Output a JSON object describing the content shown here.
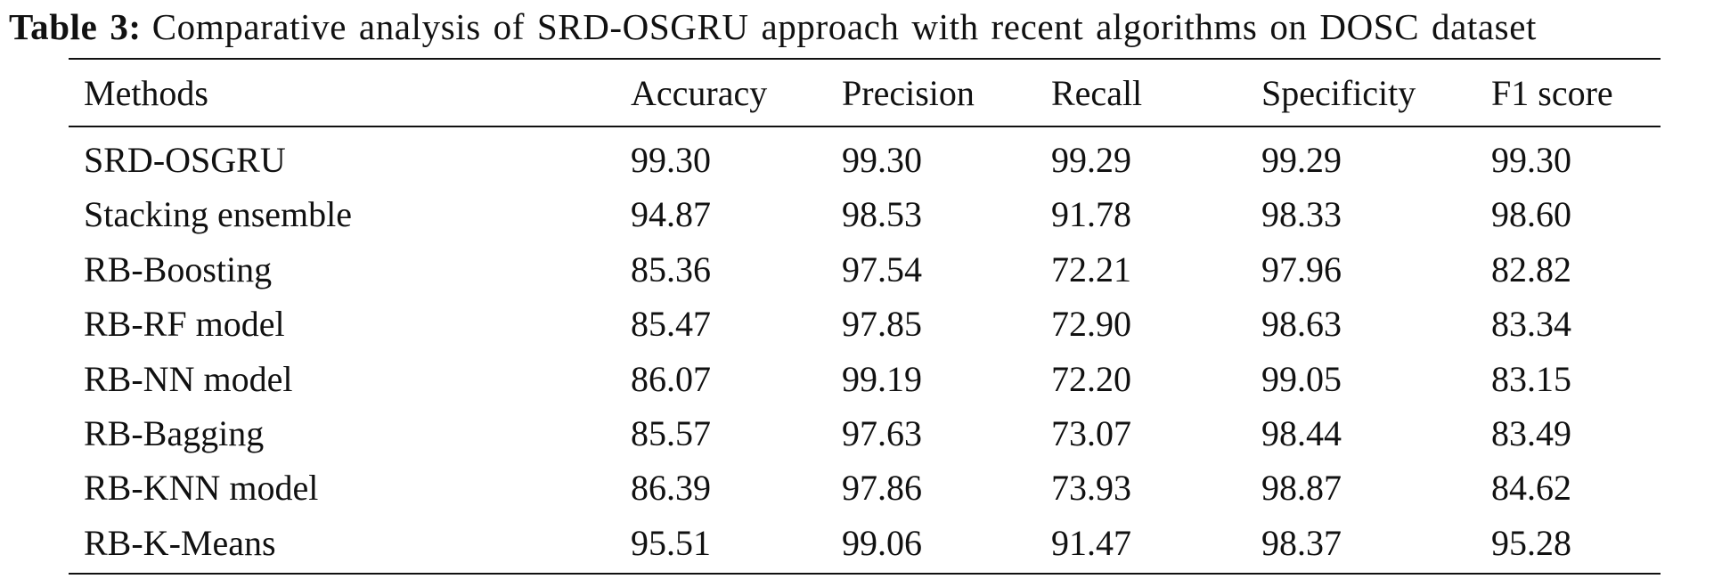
{
  "caption": {
    "label": "Table 3:",
    "text": "Comparative analysis of SRD-OSGRU approach with recent algorithms on DOSC dataset"
  },
  "table": {
    "columns": [
      "Methods",
      "Accuracy",
      "Precision",
      "Recall",
      "Specificity",
      "F1 score"
    ],
    "rows": [
      [
        "SRD-OSGRU",
        "99.30",
        "99.30",
        "99.29",
        "99.29",
        "99.30"
      ],
      [
        "Stacking ensemble",
        "94.87",
        "98.53",
        "91.78",
        "98.33",
        "98.60"
      ],
      [
        "RB-Boosting",
        "85.36",
        "97.54",
        "72.21",
        "97.96",
        "82.82"
      ],
      [
        "RB-RF model",
        "85.47",
        "97.85",
        "72.90",
        "98.63",
        "83.34"
      ],
      [
        "RB-NN model",
        "86.07",
        "99.19",
        "72.20",
        "99.05",
        "83.15"
      ],
      [
        "RB-Bagging",
        "85.57",
        "97.63",
        "73.07",
        "98.44",
        "83.49"
      ],
      [
        "RB-KNN model",
        "86.39",
        "97.86",
        "73.93",
        "98.87",
        "84.62"
      ],
      [
        "RB-K-Means",
        "95.51",
        "99.06",
        "91.47",
        "98.37",
        "95.28"
      ]
    ]
  }
}
